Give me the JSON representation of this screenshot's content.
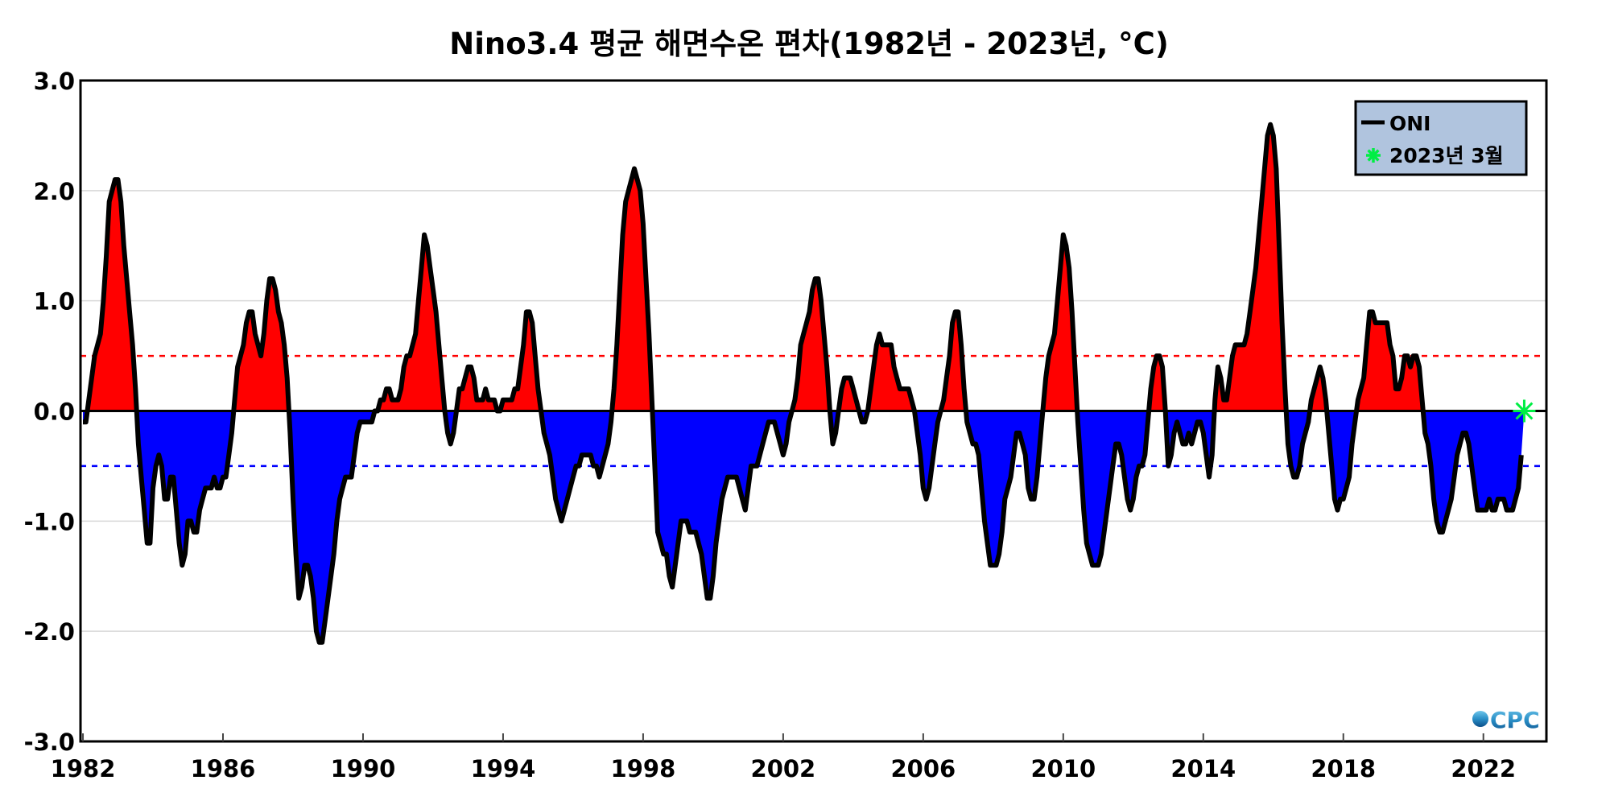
{
  "chart_data": {
    "type": "area",
    "title": "Nino3.4 평균 해면수온 편차(1982년 - 2023년, °C)",
    "xlabel": "",
    "ylabel": "",
    "xlim": [
      1981.93,
      2023.8
    ],
    "ylim": [
      -3.0,
      3.0
    ],
    "x_ticks": [
      "1982",
      "1986",
      "1990",
      "1994",
      "1998",
      "2002",
      "2006",
      "2010",
      "2014",
      "2018",
      "2022"
    ],
    "y_ticks": [
      "3.0",
      "2.0",
      "1.0",
      "0.0",
      "-1.0",
      "-2.0",
      "-3.0"
    ],
    "grid": true,
    "thresholds": [
      {
        "value": 0.5,
        "color": "#ff0000",
        "style": "dashed"
      },
      {
        "value": -0.5,
        "color": "#0000ff",
        "style": "dashed"
      }
    ],
    "colors": {
      "positive_fill": "#ff0000",
      "negative_fill": "#0000ff",
      "line": "#000000",
      "marker": "#00ee44",
      "legend_bg": "#b0c4de"
    },
    "legend": {
      "placement": "top-right",
      "entries": [
        "ONI",
        "2023년 3월"
      ]
    },
    "series": [
      {
        "name": "ONI",
        "monthly": {
          "1982": [
            -0.1,
            -0.1,
            0.1,
            0.3,
            0.5,
            0.6,
            0.7,
            1.0,
            1.4,
            1.9,
            2.0,
            2.1
          ],
          "1983": [
            2.1,
            1.9,
            1.5,
            1.2,
            0.9,
            0.6,
            0.2,
            -0.3,
            -0.6,
            -0.9,
            -1.2,
            -1.2
          ],
          "1984": [
            -0.7,
            -0.5,
            -0.4,
            -0.5,
            -0.8,
            -0.8,
            -0.6,
            -0.6,
            -0.9,
            -1.2,
            -1.4,
            -1.3
          ],
          "1985": [
            -1.0,
            -1.0,
            -1.1,
            -1.1,
            -0.9,
            -0.8,
            -0.7,
            -0.7,
            -0.7,
            -0.6,
            -0.7,
            -0.7
          ],
          "1986": [
            -0.6,
            -0.6,
            -0.4,
            -0.2,
            0.1,
            0.4,
            0.5,
            0.6,
            0.8,
            0.9,
            0.9,
            0.7
          ],
          "1987": [
            0.6,
            0.5,
            0.7,
            1.0,
            1.2,
            1.2,
            1.1,
            0.9,
            0.8,
            0.6,
            0.3,
            -0.2
          ],
          "1988": [
            -0.8,
            -1.3,
            -1.7,
            -1.6,
            -1.4,
            -1.4,
            -1.5,
            -1.7,
            -2.0,
            -2.1,
            -2.1,
            -1.9
          ],
          "1989": [
            -1.7,
            -1.5,
            -1.3,
            -1.0,
            -0.8,
            -0.7,
            -0.6,
            -0.6,
            -0.6,
            -0.4,
            -0.2,
            -0.1
          ],
          "1990": [
            -0.1,
            -0.1,
            -0.1,
            -0.1,
            0.0,
            0.0,
            0.1,
            0.1,
            0.2,
            0.2,
            0.1,
            0.1
          ],
          "1991": [
            0.1,
            0.2,
            0.4,
            0.5,
            0.5,
            0.6,
            0.7,
            1.0,
            1.3,
            1.6,
            1.5,
            1.3
          ],
          "1992": [
            1.1,
            0.9,
            0.6,
            0.3,
            0.0,
            -0.2,
            -0.3,
            -0.2,
            0.0,
            0.2,
            0.2,
            0.3
          ],
          "1993": [
            0.4,
            0.4,
            0.3,
            0.1,
            0.1,
            0.1,
            0.2,
            0.1,
            0.1,
            0.1,
            0.0,
            0.0
          ],
          "1994": [
            0.1,
            0.1,
            0.1,
            0.1,
            0.2,
            0.2,
            0.4,
            0.6,
            0.9,
            0.9,
            0.8,
            0.5
          ],
          "1995": [
            0.2,
            0.0,
            -0.2,
            -0.3,
            -0.4,
            -0.6,
            -0.8,
            -0.9,
            -1.0,
            -0.9,
            -0.8,
            -0.7
          ],
          "1996": [
            -0.6,
            -0.5,
            -0.5,
            -0.4,
            -0.4,
            -0.4,
            -0.4,
            -0.5,
            -0.5,
            -0.6,
            -0.5,
            -0.4
          ],
          "1997": [
            -0.3,
            -0.1,
            0.2,
            0.6,
            1.1,
            1.6,
            1.9,
            2.0,
            2.1,
            2.2,
            2.1,
            2.0
          ],
          "1998": [
            1.7,
            1.2,
            0.7,
            0.1,
            -0.5,
            -1.1,
            -1.2,
            -1.3,
            -1.3,
            -1.5,
            -1.6,
            -1.4
          ],
          "1999": [
            -1.2,
            -1.0,
            -1.0,
            -1.0,
            -1.1,
            -1.1,
            -1.1,
            -1.2,
            -1.3,
            -1.5,
            -1.7,
            -1.7
          ],
          "2000": [
            -1.5,
            -1.2,
            -1.0,
            -0.8,
            -0.7,
            -0.6,
            -0.6,
            -0.6,
            -0.6,
            -0.7,
            -0.8,
            -0.9
          ],
          "2001": [
            -0.7,
            -0.5,
            -0.5,
            -0.5,
            -0.4,
            -0.3,
            -0.2,
            -0.1,
            -0.1,
            -0.1,
            -0.2,
            -0.3
          ],
          "2002": [
            -0.4,
            -0.3,
            -0.1,
            0.0,
            0.1,
            0.3,
            0.6,
            0.7,
            0.8,
            0.9,
            1.1,
            1.2
          ],
          "2003": [
            1.2,
            1.0,
            0.7,
            0.4,
            0.0,
            -0.3,
            -0.2,
            0.0,
            0.2,
            0.3,
            0.3,
            0.3
          ],
          "2004": [
            0.2,
            0.1,
            0.0,
            -0.1,
            -0.1,
            0.0,
            0.2,
            0.4,
            0.6,
            0.7,
            0.6,
            0.6
          ],
          "2005": [
            0.6,
            0.6,
            0.4,
            0.3,
            0.2,
            0.2,
            0.2,
            0.2,
            0.1,
            0.0,
            -0.2,
            -0.4
          ],
          "2006": [
            -0.7,
            -0.8,
            -0.7,
            -0.5,
            -0.3,
            -0.1,
            0.0,
            0.1,
            0.3,
            0.5,
            0.8,
            0.9
          ],
          "2007": [
            0.9,
            0.6,
            0.2,
            -0.1,
            -0.2,
            -0.3,
            -0.3,
            -0.4,
            -0.7,
            -1.0,
            -1.2,
            -1.4
          ],
          "2008": [
            -1.4,
            -1.4,
            -1.3,
            -1.1,
            -0.8,
            -0.7,
            -0.6,
            -0.4,
            -0.2,
            -0.2,
            -0.3,
            -0.4
          ],
          "2009": [
            -0.7,
            -0.8,
            -0.8,
            -0.6,
            -0.3,
            0.0,
            0.3,
            0.5,
            0.6,
            0.7,
            1.0,
            1.3
          ],
          "2010": [
            1.6,
            1.5,
            1.3,
            0.9,
            0.4,
            -0.1,
            -0.5,
            -0.9,
            -1.2,
            -1.3,
            -1.4,
            -1.4
          ],
          "2011": [
            -1.4,
            -1.3,
            -1.1,
            -0.9,
            -0.7,
            -0.5,
            -0.3,
            -0.3,
            -0.4,
            -0.6,
            -0.8,
            -0.9
          ],
          "2012": [
            -0.8,
            -0.6,
            -0.5,
            -0.5,
            -0.4,
            -0.1,
            0.2,
            0.4,
            0.5,
            0.5,
            0.4,
            0.0
          ],
          "2013": [
            -0.5,
            -0.4,
            -0.2,
            -0.1,
            -0.2,
            -0.3,
            -0.3,
            -0.2,
            -0.3,
            -0.2,
            -0.1,
            -0.1
          ],
          "2014": [
            -0.2,
            -0.4,
            -0.6,
            -0.4,
            0.1,
            0.4,
            0.3,
            0.1,
            0.1,
            0.3,
            0.5,
            0.6
          ],
          "2015": [
            0.6,
            0.6,
            0.6,
            0.7,
            0.9,
            1.1,
            1.3,
            1.6,
            1.9,
            2.2,
            2.5,
            2.6
          ],
          "2016": [
            2.5,
            2.2,
            1.5,
            0.8,
            0.2,
            -0.3,
            -0.5,
            -0.6,
            -0.6,
            -0.5,
            -0.3,
            -0.2
          ],
          "2017": [
            -0.1,
            0.1,
            0.2,
            0.3,
            0.4,
            0.3,
            0.1,
            -0.2,
            -0.5,
            -0.8,
            -0.9,
            -0.8
          ],
          "2018": [
            -0.8,
            -0.7,
            -0.6,
            -0.3,
            -0.1,
            0.1,
            0.2,
            0.3,
            0.6,
            0.9,
            0.9,
            0.8
          ],
          "2019": [
            0.8,
            0.8,
            0.8,
            0.8,
            0.6,
            0.5,
            0.2,
            0.2,
            0.3,
            0.5,
            0.5,
            0.4
          ],
          "2020": [
            0.5,
            0.5,
            0.4,
            0.1,
            -0.2,
            -0.3,
            -0.5,
            -0.8,
            -1.0,
            -1.1,
            -1.1,
            -1.0
          ],
          "2021": [
            -0.9,
            -0.8,
            -0.6,
            -0.4,
            -0.3,
            -0.2,
            -0.2,
            -0.3,
            -0.5,
            -0.7,
            -0.9,
            -0.9
          ],
          "2022": [
            -0.9,
            -0.9,
            -0.8,
            -0.9,
            -0.9,
            -0.8,
            -0.8,
            -0.8,
            -0.9,
            -0.9,
            -0.9,
            -0.8
          ],
          "2023": [
            -0.7,
            -0.4
          ]
        }
      }
    ],
    "marker": {
      "name": "2023년 3월",
      "date": "2023-03",
      "value": 0.0,
      "symbol": "asterisk"
    }
  },
  "logo": {
    "text": "CPC"
  }
}
